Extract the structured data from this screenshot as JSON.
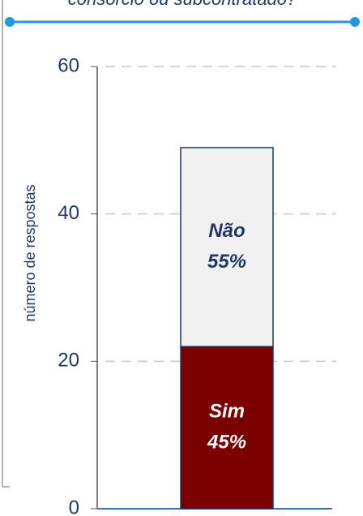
{
  "chart_data": {
    "type": "stacked_bar",
    "title": "consórcio ou subcontratado?",
    "y_label": "número de respostas",
    "categories": [
      null
    ],
    "series": [
      {
        "name": "Sim",
        "color": "#7b0000",
        "values": [
          22
        ],
        "share_label": "45%"
      },
      {
        "name": "Não",
        "color": "#f0f0f0",
        "values": [
          27
        ],
        "share_label": "55%"
      }
    ],
    "ylim": [
      0,
      60
    ],
    "yticks": [
      0,
      20,
      40,
      60
    ],
    "grid": true
  }
}
